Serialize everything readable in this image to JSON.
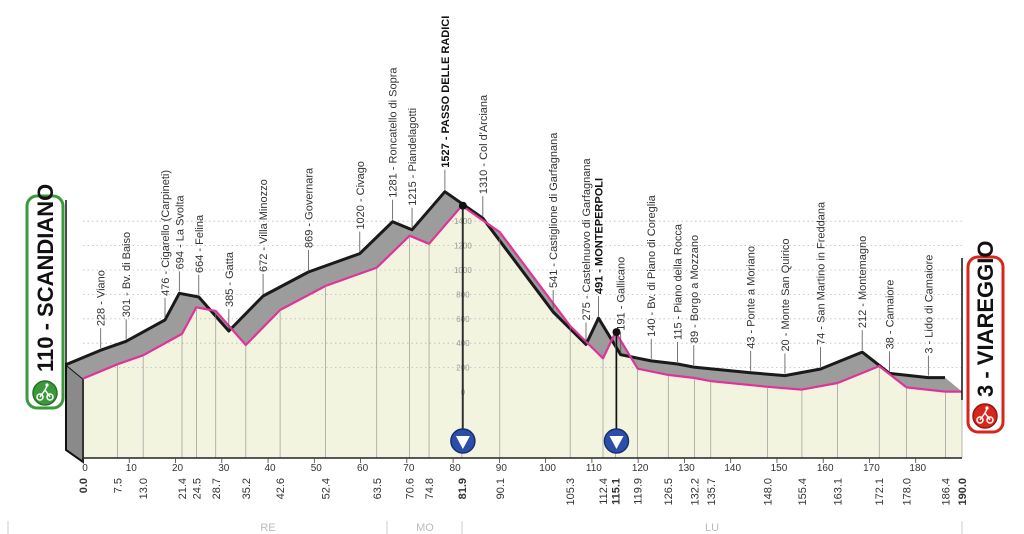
{
  "start": {
    "label": "110 - SCANDIANO",
    "color": "#3a9a3a"
  },
  "finish": {
    "label": "3 - VIAREGGIO",
    "color": "#d9261c"
  },
  "colors": {
    "profile_line": "#e0339a",
    "back_line": "#1a1a1a",
    "band": "#9c9c9c",
    "fill": "#f3f4df",
    "descent_marker": "#2b4fa8"
  },
  "provinces": [
    "RE",
    "MO",
    "LU"
  ],
  "chart_data": {
    "type": "area",
    "xlabel": "",
    "ylabel": "",
    "xlim": [
      0,
      190
    ],
    "ylim": [
      0,
      1400
    ],
    "x_ticks": [
      0,
      10,
      20,
      30,
      40,
      50,
      60,
      70,
      80,
      90,
      100,
      110,
      120,
      130,
      140,
      150,
      160,
      170,
      180
    ],
    "y_ticks": [
      0,
      200,
      400,
      600,
      800,
      1000,
      1200,
      1400
    ],
    "grid": true,
    "waypoints": [
      {
        "km": "0.0",
        "x": 0,
        "elev": 110,
        "label": "",
        "bold": true
      },
      {
        "km": "7.5",
        "x": 7.5,
        "elev": 228,
        "label": "228 - Viano"
      },
      {
        "km": "13.0",
        "x": 13.0,
        "elev": 301,
        "label": "301 - Bv. di Baiso"
      },
      {
        "km": "21.4",
        "x": 21.4,
        "elev": 476,
        "label": "476 - Cigarello (Carpineti)"
      },
      {
        "km": "24.5",
        "x": 24.5,
        "elev": 694,
        "label": "694 - La Svolta"
      },
      {
        "km": "28.7",
        "x": 28.7,
        "elev": 664,
        "label": "664 - Felina"
      },
      {
        "km": "35.2",
        "x": 35.2,
        "elev": 385,
        "label": "385 - Gatta"
      },
      {
        "km": "42.6",
        "x": 42.6,
        "elev": 672,
        "label": "672 - Villa Minozzo"
      },
      {
        "km": "52.4",
        "x": 52.4,
        "elev": 869,
        "label": "869 - Governara"
      },
      {
        "km": "63.5",
        "x": 63.5,
        "elev": 1020,
        "label": "1020 - Civago"
      },
      {
        "km": "70.6",
        "x": 70.6,
        "elev": 1281,
        "label": "1281 - Roncatello di Sopra"
      },
      {
        "km": "74.8",
        "x": 74.8,
        "elev": 1215,
        "label": "1215 - Piandelagotti"
      },
      {
        "km": "81.9",
        "x": 81.9,
        "elev": 1527,
        "label": "1527 - PASSO DELLE RADICI",
        "bold": true,
        "descent": true
      },
      {
        "km": "90.1",
        "x": 90.1,
        "elev": 1310,
        "label": "1310 - Col d'Arciana"
      },
      {
        "km": "105.3",
        "x": 105.3,
        "elev": 541,
        "label": "541 - Castiglione di Garfagnana"
      },
      {
        "km": "112.4",
        "x": 112.4,
        "elev": 275,
        "label": "275 - Castelnuovo di Garfagnana"
      },
      {
        "km": "115.1",
        "x": 115.1,
        "elev": 491,
        "label": "491 - MONTEPERPOLI",
        "bold": true,
        "descent": true
      },
      {
        "km": "119.9",
        "x": 119.9,
        "elev": 191,
        "label": "191 - Gallicano"
      },
      {
        "km": "126.5",
        "x": 126.5,
        "elev": 140,
        "label": "140 - Bv. di Piano di Coreglia"
      },
      {
        "km": "132.2",
        "x": 132.2,
        "elev": 115,
        "label": "115 - Piano della Rocca"
      },
      {
        "km": "135.7",
        "x": 135.7,
        "elev": 89,
        "label": "89 - Borgo a Mozzano"
      },
      {
        "km": "148.0",
        "x": 148.0,
        "elev": 43,
        "label": "43 - Ponte a Moriano"
      },
      {
        "km": "155.4",
        "x": 155.4,
        "elev": 20,
        "label": "20 - Monte San Quirico"
      },
      {
        "km": "163.1",
        "x": 163.1,
        "elev": 74,
        "label": "74 - San Martino in Freddana"
      },
      {
        "km": "172.1",
        "x": 172.1,
        "elev": 212,
        "label": "212 - Montemagno"
      },
      {
        "km": "178.0",
        "x": 178.0,
        "elev": 38,
        "label": "38 - Camaiore"
      },
      {
        "km": "186.4",
        "x": 186.4,
        "elev": 3,
        "label": "3 - Lido di Camaiore"
      },
      {
        "km": "190.0",
        "x": 190.0,
        "elev": 3,
        "label": "",
        "bold": true
      }
    ]
  }
}
